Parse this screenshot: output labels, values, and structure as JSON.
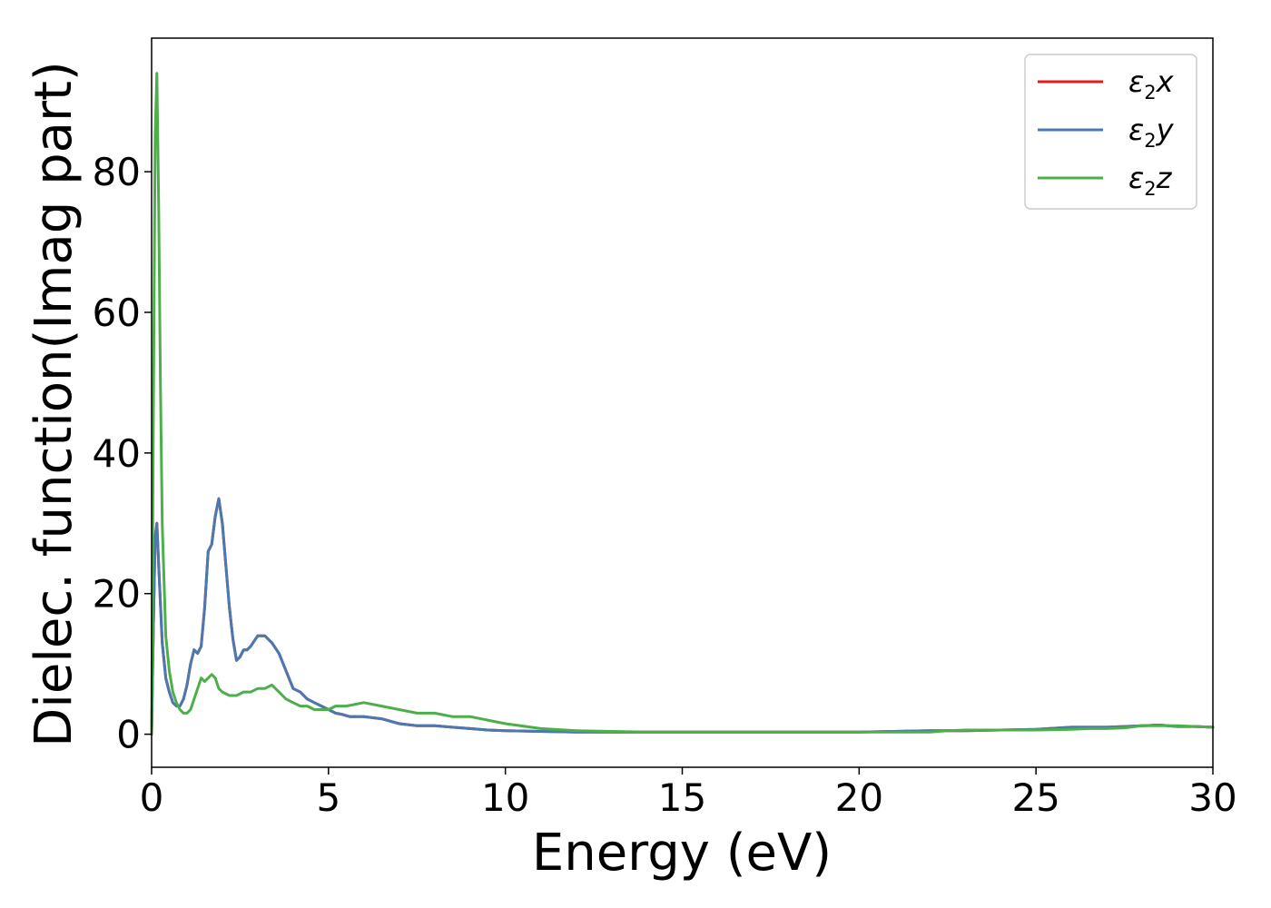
{
  "chart_data": {
    "type": "line",
    "title": "",
    "xlabel": "Energy (eV)",
    "ylabel": "Dielec. function(Imag part)",
    "xlim": [
      0,
      30
    ],
    "ylim": [
      -4.7,
      99
    ],
    "xticks": [
      "0",
      "5",
      "10",
      "15",
      "20",
      "25",
      "30"
    ],
    "yticks": [
      "0",
      "20",
      "40",
      "60",
      "80"
    ],
    "grid": false,
    "legend_position": "top-right",
    "series": [
      {
        "name": "ε₂x",
        "legend_symbol": "ε",
        "legend_subscript": "2",
        "legend_variable": "x",
        "color": "#e41a1c",
        "x": [
          0,
          0.05,
          0.1,
          0.15,
          0.2,
          0.3,
          0.4,
          0.5,
          0.6,
          0.7,
          0.8,
          0.9,
          1.0,
          1.1,
          1.2,
          1.3,
          1.4,
          1.5,
          1.6,
          1.7,
          1.8,
          1.9,
          2.0,
          2.1,
          2.2,
          2.3,
          2.4,
          2.5,
          2.6,
          2.7,
          2.8,
          3.0,
          3.2,
          3.4,
          3.6,
          3.8,
          4.0,
          4.2,
          4.4,
          4.6,
          4.8,
          5.0,
          5.2,
          5.4,
          5.6,
          6.0,
          6.5,
          7.0,
          7.5,
          8.0,
          8.5,
          9.0,
          9.5,
          10.0,
          11.0,
          12.0,
          13.0,
          14.0,
          15.0,
          16.0,
          17.0,
          18.0,
          19.0,
          20.0,
          21.0,
          22.0,
          22.5,
          23.0,
          24.0,
          25.0,
          26.0,
          26.5,
          27.0,
          27.5,
          28.0,
          28.5,
          29.0,
          29.5,
          30.0
        ],
        "y": [
          0,
          15,
          28,
          30,
          24,
          13,
          8,
          6,
          4.5,
          4,
          4,
          5,
          7,
          10,
          12,
          11.5,
          12.5,
          18,
          26,
          27,
          31,
          33.5,
          30,
          24,
          18,
          13.5,
          10.5,
          11,
          12,
          12,
          12.5,
          14,
          14,
          13,
          11.5,
          9,
          6.5,
          6,
          5,
          4.5,
          4,
          3.5,
          3,
          2.8,
          2.5,
          2.5,
          2.2,
          1.5,
          1.2,
          1.2,
          1.0,
          0.8,
          0.6,
          0.5,
          0.4,
          0.3,
          0.3,
          0.3,
          0.3,
          0.3,
          0.3,
          0.3,
          0.3,
          0.3,
          0.4,
          0.5,
          0.5,
          0.5,
          0.6,
          0.7,
          1.0,
          1.0,
          1.0,
          1.1,
          1.2,
          1.3,
          1.1,
          1.1,
          1.0
        ]
      },
      {
        "name": "ε₂y",
        "legend_symbol": "ε",
        "legend_subscript": "2",
        "legend_variable": "y",
        "color": "#4a79b2",
        "x": [
          0,
          0.05,
          0.1,
          0.15,
          0.2,
          0.3,
          0.4,
          0.5,
          0.6,
          0.7,
          0.8,
          0.9,
          1.0,
          1.1,
          1.2,
          1.3,
          1.4,
          1.5,
          1.6,
          1.7,
          1.8,
          1.9,
          2.0,
          2.1,
          2.2,
          2.3,
          2.4,
          2.5,
          2.6,
          2.7,
          2.8,
          3.0,
          3.2,
          3.4,
          3.6,
          3.8,
          4.0,
          4.2,
          4.4,
          4.6,
          4.8,
          5.0,
          5.2,
          5.4,
          5.6,
          6.0,
          6.5,
          7.0,
          7.5,
          8.0,
          8.5,
          9.0,
          9.5,
          10.0,
          11.0,
          12.0,
          13.0,
          14.0,
          15.0,
          16.0,
          17.0,
          18.0,
          19.0,
          20.0,
          21.0,
          22.0,
          22.5,
          23.0,
          24.0,
          25.0,
          26.0,
          26.5,
          27.0,
          27.5,
          28.0,
          28.5,
          29.0,
          29.5,
          30.0
        ],
        "y": [
          0,
          15,
          28,
          30,
          24,
          13,
          8,
          6,
          4.5,
          4,
          4,
          5,
          7,
          10,
          12,
          11.5,
          12.5,
          18,
          26,
          27,
          31,
          33.5,
          30,
          24,
          18,
          13.5,
          10.5,
          11,
          12,
          12,
          12.5,
          14,
          14,
          13,
          11.5,
          9,
          6.5,
          6,
          5,
          4.5,
          4,
          3.5,
          3,
          2.8,
          2.5,
          2.5,
          2.2,
          1.5,
          1.2,
          1.2,
          1.0,
          0.8,
          0.6,
          0.5,
          0.4,
          0.3,
          0.3,
          0.3,
          0.3,
          0.3,
          0.3,
          0.3,
          0.3,
          0.3,
          0.4,
          0.5,
          0.5,
          0.5,
          0.6,
          0.7,
          1.0,
          1.0,
          1.0,
          1.1,
          1.2,
          1.3,
          1.1,
          1.1,
          1.0
        ]
      },
      {
        "name": "ε₂z",
        "legend_symbol": "ε",
        "legend_subscript": "2",
        "legend_variable": "z",
        "color": "#4daf4a",
        "x": [
          0,
          0.05,
          0.1,
          0.15,
          0.2,
          0.25,
          0.3,
          0.4,
          0.5,
          0.6,
          0.7,
          0.8,
          0.9,
          1.0,
          1.1,
          1.2,
          1.3,
          1.4,
          1.5,
          1.6,
          1.7,
          1.8,
          1.9,
          2.0,
          2.2,
          2.4,
          2.6,
          2.8,
          3.0,
          3.2,
          3.4,
          3.6,
          3.8,
          4.0,
          4.2,
          4.4,
          4.6,
          4.8,
          5.0,
          5.2,
          5.5,
          6.0,
          6.5,
          7.0,
          7.5,
          8.0,
          8.5,
          9.0,
          9.5,
          10.0,
          11.0,
          12.0,
          13.0,
          14.0,
          15.0,
          16.0,
          17.0,
          18.0,
          19.0,
          20.0,
          21.0,
          22.0,
          22.5,
          23.0,
          24.0,
          25.0,
          26.0,
          26.5,
          27.0,
          27.5,
          28.0,
          28.5,
          29.0,
          29.5,
          30.0
        ],
        "y": [
          0,
          45,
          85,
          94,
          75,
          50,
          30,
          14,
          9,
          6,
          4.5,
          3.5,
          3,
          3,
          3.5,
          5,
          6.5,
          8,
          7.5,
          8,
          8.5,
          8,
          6.5,
          6,
          5.5,
          5.5,
          6,
          6,
          6.5,
          6.5,
          7,
          6,
          5,
          4.5,
          4,
          4,
          3.5,
          3.5,
          3.5,
          4,
          4,
          4.5,
          4,
          3.5,
          3,
          3,
          2.5,
          2.5,
          2,
          1.5,
          0.8,
          0.5,
          0.4,
          0.3,
          0.3,
          0.3,
          0.3,
          0.3,
          0.3,
          0.3,
          0.3,
          0.3,
          0.5,
          0.6,
          0.6,
          0.6,
          0.7,
          0.8,
          0.8,
          0.9,
          1.2,
          1.2,
          1.2,
          1.1,
          1.0
        ]
      }
    ]
  }
}
